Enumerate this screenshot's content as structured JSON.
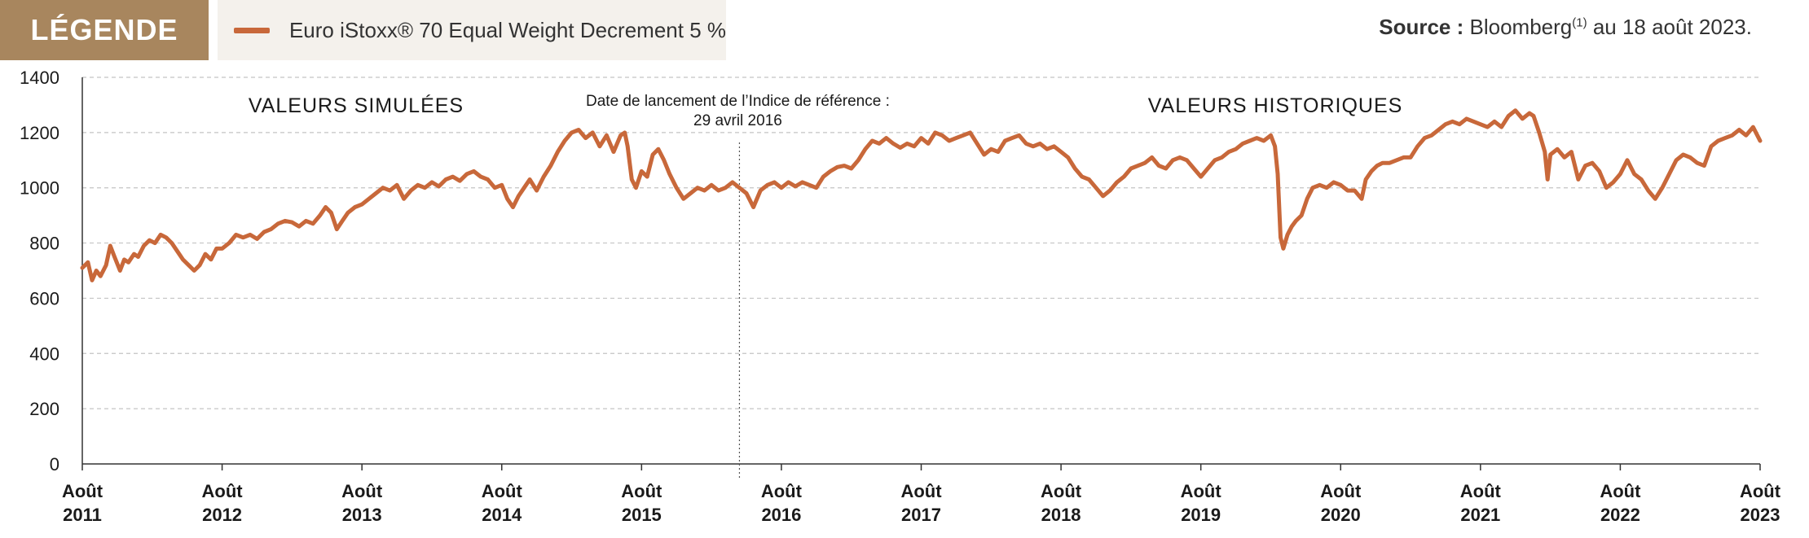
{
  "legend": {
    "title": "LÉGENDE",
    "series_label": "Euro iStoxx® 70 Equal Weight Decrement 5 %"
  },
  "source": {
    "label": "Source :",
    "provider": "Bloomberg",
    "footnote": "(1)",
    "date_text": "au 18 août 2023."
  },
  "colors": {
    "series": "#c8683a",
    "legend_tag": "#a8865e",
    "legend_box": "#f4f1ec",
    "grid": "#c4c4c4"
  },
  "chart_data": {
    "type": "line",
    "title": "",
    "xlabel": "",
    "ylabel": "",
    "ylim": [
      0,
      1400
    ],
    "yticks": [
      0,
      200,
      400,
      600,
      800,
      1000,
      1200,
      1400
    ],
    "grid": "horizontal dashed",
    "xlim": [
      2011.0,
      2023.0
    ],
    "xticks": [
      {
        "x": 2011,
        "label": [
          "Août",
          "2011"
        ]
      },
      {
        "x": 2012,
        "label": [
          "Août",
          "2012"
        ]
      },
      {
        "x": 2013,
        "label": [
          "Août",
          "2013"
        ]
      },
      {
        "x": 2014,
        "label": [
          "Août",
          "2014"
        ]
      },
      {
        "x": 2015,
        "label": [
          "Août",
          "2015"
        ]
      },
      {
        "x": 2016,
        "label": [
          "Août",
          "2016"
        ]
      },
      {
        "x": 2017,
        "label": [
          "Août",
          "2017"
        ]
      },
      {
        "x": 2018,
        "label": [
          "Août",
          "2018"
        ]
      },
      {
        "x": 2019,
        "label": [
          "Août",
          "2019"
        ]
      },
      {
        "x": 2020,
        "label": [
          "Août",
          "2020"
        ]
      },
      {
        "x": 2021,
        "label": [
          "Août",
          "2021"
        ]
      },
      {
        "x": 2022,
        "label": [
          "Août",
          "2022"
        ]
      },
      {
        "x": 2023,
        "label": [
          "Août",
          "2023"
        ]
      }
    ],
    "annotations": {
      "simulated": "VALEURS SIMULÉES",
      "historical": "VALEURS HISTORIQUES",
      "launch_line1": "Date de lancement de l’Indice de référence :",
      "launch_line2": "29 avril 2016",
      "launch_x": 2015.7
    },
    "series": [
      {
        "name": "Euro iStoxx® 70 Equal Weight Decrement 5 %",
        "points": [
          [
            2011.0,
            710
          ],
          [
            2011.04,
            730
          ],
          [
            2011.07,
            665
          ],
          [
            2011.1,
            700
          ],
          [
            2011.13,
            680
          ],
          [
            2011.17,
            720
          ],
          [
            2011.2,
            790
          ],
          [
            2011.23,
            750
          ],
          [
            2011.27,
            700
          ],
          [
            2011.3,
            740
          ],
          [
            2011.33,
            730
          ],
          [
            2011.37,
            760
          ],
          [
            2011.4,
            750
          ],
          [
            2011.44,
            790
          ],
          [
            2011.48,
            810
          ],
          [
            2011.52,
            800
          ],
          [
            2011.56,
            830
          ],
          [
            2011.6,
            820
          ],
          [
            2011.64,
            800
          ],
          [
            2011.68,
            770
          ],
          [
            2011.72,
            740
          ],
          [
            2011.76,
            720
          ],
          [
            2011.8,
            700
          ],
          [
            2011.84,
            720
          ],
          [
            2011.88,
            760
          ],
          [
            2011.92,
            740
          ],
          [
            2011.96,
            780
          ],
          [
            2012.0,
            780
          ],
          [
            2012.05,
            800
          ],
          [
            2012.1,
            830
          ],
          [
            2012.15,
            820
          ],
          [
            2012.2,
            830
          ],
          [
            2012.25,
            815
          ],
          [
            2012.3,
            840
          ],
          [
            2012.35,
            850
          ],
          [
            2012.4,
            870
          ],
          [
            2012.45,
            880
          ],
          [
            2012.5,
            875
          ],
          [
            2012.55,
            860
          ],
          [
            2012.6,
            880
          ],
          [
            2012.65,
            870
          ],
          [
            2012.7,
            900
          ],
          [
            2012.74,
            930
          ],
          [
            2012.78,
            910
          ],
          [
            2012.82,
            850
          ],
          [
            2012.86,
            880
          ],
          [
            2012.9,
            910
          ],
          [
            2012.95,
            930
          ],
          [
            2013.0,
            940
          ],
          [
            2013.05,
            960
          ],
          [
            2013.1,
            980
          ],
          [
            2013.15,
            1000
          ],
          [
            2013.2,
            990
          ],
          [
            2013.25,
            1010
          ],
          [
            2013.3,
            960
          ],
          [
            2013.35,
            990
          ],
          [
            2013.4,
            1010
          ],
          [
            2013.45,
            1000
          ],
          [
            2013.5,
            1020
          ],
          [
            2013.55,
            1005
          ],
          [
            2013.6,
            1030
          ],
          [
            2013.65,
            1040
          ],
          [
            2013.7,
            1025
          ],
          [
            2013.75,
            1050
          ],
          [
            2013.8,
            1060
          ],
          [
            2013.85,
            1040
          ],
          [
            2013.9,
            1030
          ],
          [
            2013.95,
            1000
          ],
          [
            2014.0,
            1010
          ],
          [
            2014.04,
            960
          ],
          [
            2014.08,
            930
          ],
          [
            2014.12,
            970
          ],
          [
            2014.16,
            1000
          ],
          [
            2014.2,
            1030
          ],
          [
            2014.25,
            990
          ],
          [
            2014.3,
            1040
          ],
          [
            2014.35,
            1080
          ],
          [
            2014.4,
            1130
          ],
          [
            2014.45,
            1170
          ],
          [
            2014.5,
            1200
          ],
          [
            2014.55,
            1210
          ],
          [
            2014.6,
            1180
          ],
          [
            2014.65,
            1200
          ],
          [
            2014.7,
            1150
          ],
          [
            2014.75,
            1190
          ],
          [
            2014.8,
            1130
          ],
          [
            2014.85,
            1190
          ],
          [
            2014.88,
            1200
          ],
          [
            2014.9,
            1150
          ],
          [
            2014.93,
            1030
          ],
          [
            2014.96,
            1000
          ],
          [
            2015.0,
            1060
          ],
          [
            2015.04,
            1040
          ],
          [
            2015.08,
            1120
          ],
          [
            2015.12,
            1140
          ],
          [
            2015.16,
            1100
          ],
          [
            2015.2,
            1050
          ],
          [
            2015.25,
            1000
          ],
          [
            2015.3,
            960
          ],
          [
            2015.35,
            980
          ],
          [
            2015.4,
            1000
          ],
          [
            2015.45,
            990
          ],
          [
            2015.5,
            1010
          ],
          [
            2015.55,
            990
          ],
          [
            2015.6,
            1000
          ],
          [
            2015.65,
            1020
          ],
          [
            2015.7,
            1000
          ],
          [
            2015.75,
            980
          ],
          [
            2015.8,
            930
          ],
          [
            2015.85,
            990
          ],
          [
            2015.9,
            1010
          ],
          [
            2015.95,
            1020
          ],
          [
            2016.0,
            1000
          ],
          [
            2016.05,
            1020
          ],
          [
            2016.1,
            1005
          ],
          [
            2016.15,
            1020
          ],
          [
            2016.2,
            1010
          ],
          [
            2016.25,
            1000
          ],
          [
            2016.3,
            1040
          ],
          [
            2016.35,
            1060
          ],
          [
            2016.4,
            1075
          ],
          [
            2016.45,
            1080
          ],
          [
            2016.5,
            1070
          ],
          [
            2016.55,
            1100
          ],
          [
            2016.6,
            1140
          ],
          [
            2016.65,
            1170
          ],
          [
            2016.7,
            1160
          ],
          [
            2016.75,
            1180
          ],
          [
            2016.8,
            1160
          ],
          [
            2016.85,
            1145
          ],
          [
            2016.9,
            1160
          ],
          [
            2016.95,
            1150
          ],
          [
            2017.0,
            1180
          ],
          [
            2017.05,
            1160
          ],
          [
            2017.1,
            1200
          ],
          [
            2017.15,
            1190
          ],
          [
            2017.2,
            1170
          ],
          [
            2017.25,
            1180
          ],
          [
            2017.3,
            1190
          ],
          [
            2017.35,
            1200
          ],
          [
            2017.4,
            1160
          ],
          [
            2017.45,
            1120
          ],
          [
            2017.5,
            1140
          ],
          [
            2017.55,
            1130
          ],
          [
            2017.6,
            1170
          ],
          [
            2017.65,
            1180
          ],
          [
            2017.7,
            1190
          ],
          [
            2017.75,
            1160
          ],
          [
            2017.8,
            1150
          ],
          [
            2017.85,
            1160
          ],
          [
            2017.9,
            1140
          ],
          [
            2017.95,
            1150
          ],
          [
            2018.0,
            1130
          ],
          [
            2018.05,
            1110
          ],
          [
            2018.1,
            1070
          ],
          [
            2018.15,
            1040
          ],
          [
            2018.2,
            1030
          ],
          [
            2018.25,
            1000
          ],
          [
            2018.3,
            970
          ],
          [
            2018.35,
            990
          ],
          [
            2018.4,
            1020
          ],
          [
            2018.45,
            1040
          ],
          [
            2018.5,
            1070
          ],
          [
            2018.55,
            1080
          ],
          [
            2018.6,
            1090
          ],
          [
            2018.65,
            1110
          ],
          [
            2018.7,
            1080
          ],
          [
            2018.75,
            1070
          ],
          [
            2018.8,
            1100
          ],
          [
            2018.85,
            1110
          ],
          [
            2018.9,
            1100
          ],
          [
            2018.95,
            1070
          ],
          [
            2019.0,
            1040
          ],
          [
            2019.05,
            1070
          ],
          [
            2019.1,
            1100
          ],
          [
            2019.15,
            1110
          ],
          [
            2019.2,
            1130
          ],
          [
            2019.25,
            1140
          ],
          [
            2019.3,
            1160
          ],
          [
            2019.35,
            1170
          ],
          [
            2019.4,
            1180
          ],
          [
            2019.45,
            1170
          ],
          [
            2019.5,
            1190
          ],
          [
            2019.53,
            1150
          ],
          [
            2019.55,
            1050
          ],
          [
            2019.57,
            820
          ],
          [
            2019.59,
            780
          ],
          [
            2019.62,
            830
          ],
          [
            2019.65,
            860
          ],
          [
            2019.68,
            880
          ],
          [
            2019.72,
            900
          ],
          [
            2019.76,
            960
          ],
          [
            2019.8,
            1000
          ],
          [
            2019.85,
            1010
          ],
          [
            2019.9,
            1000
          ],
          [
            2019.95,
            1020
          ],
          [
            2020.0,
            1010
          ],
          [
            2020.05,
            990
          ],
          [
            2020.1,
            990
          ],
          [
            2020.15,
            960
          ],
          [
            2020.18,
            1030
          ],
          [
            2020.22,
            1060
          ],
          [
            2020.26,
            1080
          ],
          [
            2020.3,
            1090
          ],
          [
            2020.35,
            1090
          ],
          [
            2020.4,
            1100
          ],
          [
            2020.45,
            1110
          ],
          [
            2020.5,
            1110
          ],
          [
            2020.55,
            1150
          ],
          [
            2020.6,
            1180
          ],
          [
            2020.65,
            1190
          ],
          [
            2020.7,
            1210
          ],
          [
            2020.75,
            1230
          ],
          [
            2020.8,
            1240
          ],
          [
            2020.85,
            1230
          ],
          [
            2020.9,
            1250
          ],
          [
            2020.95,
            1240
          ],
          [
            2021.0,
            1230
          ],
          [
            2021.05,
            1220
          ],
          [
            2021.1,
            1240
          ],
          [
            2021.15,
            1220
          ],
          [
            2021.2,
            1260
          ],
          [
            2021.25,
            1280
          ],
          [
            2021.3,
            1250
          ],
          [
            2021.35,
            1270
          ],
          [
            2021.38,
            1260
          ],
          [
            2021.42,
            1200
          ],
          [
            2021.46,
            1130
          ],
          [
            2021.48,
            1030
          ],
          [
            2021.5,
            1120
          ],
          [
            2021.55,
            1140
          ],
          [
            2021.6,
            1110
          ],
          [
            2021.65,
            1130
          ],
          [
            2021.7,
            1030
          ],
          [
            2021.75,
            1080
          ],
          [
            2021.8,
            1090
          ],
          [
            2021.85,
            1060
          ],
          [
            2021.9,
            1000
          ],
          [
            2021.95,
            1020
          ],
          [
            2022.0,
            1050
          ],
          [
            2022.05,
            1100
          ],
          [
            2022.1,
            1050
          ],
          [
            2022.15,
            1030
          ],
          [
            2022.2,
            990
          ],
          [
            2022.25,
            960
          ],
          [
            2022.3,
            1000
          ],
          [
            2022.35,
            1050
          ],
          [
            2022.4,
            1100
          ],
          [
            2022.45,
            1120
          ],
          [
            2022.5,
            1110
          ],
          [
            2022.55,
            1090
          ],
          [
            2022.6,
            1080
          ],
          [
            2022.65,
            1150
          ],
          [
            2022.7,
            1170
          ],
          [
            2022.75,
            1180
          ],
          [
            2022.8,
            1190
          ],
          [
            2022.85,
            1210
          ],
          [
            2022.9,
            1190
          ],
          [
            2022.95,
            1220
          ],
          [
            2023.0,
            1170
          ]
        ]
      }
    ]
  }
}
